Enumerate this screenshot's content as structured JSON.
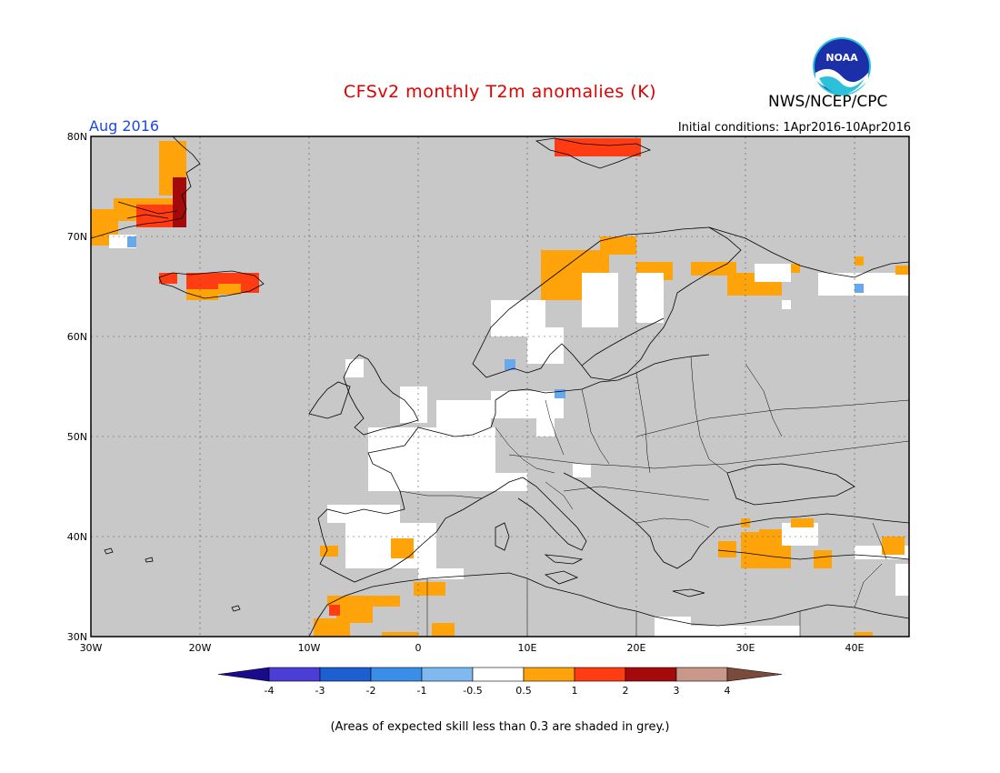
{
  "header": {
    "title": "CFSv2 monthly T2m anomalies (K)",
    "agency": "NWS/NCEP/CPC",
    "month": "Aug 2016",
    "initial_conditions": "Initial conditions: 1Apr2016-10Apr2016",
    "logo_text": "NOAA"
  },
  "map": {
    "lat_labels": [
      "80N",
      "70N",
      "60N",
      "50N",
      "40N",
      "30N"
    ],
    "lon_labels": [
      "30W",
      "20W",
      "10W",
      "0",
      "10E",
      "20E",
      "30E",
      "40E"
    ],
    "background_color": "#c8c8c8",
    "grid": true
  },
  "colorbar": {
    "ticks": [
      "-4",
      "-3",
      "-2",
      "-1",
      "-0.5",
      "0.5",
      "1",
      "2",
      "3",
      "4"
    ],
    "colors": [
      "#1a0a8c",
      "#4b3dd6",
      "#1c5fd0",
      "#3a8ee8",
      "#7fb9f0",
      "#ffffff",
      "#ffa30a",
      "#ff3c12",
      "#a50a0a",
      "#c8998a",
      "#7a4a3a"
    ]
  },
  "footnote": "(Areas of expected skill less than 0.3 are shaded in grey.)",
  "legend_colors": {
    "white": "#ffffff",
    "orange": "#ffa30a",
    "red": "#ff3c12",
    "darkred": "#a50a0a",
    "blue": "#6aa8ec"
  }
}
